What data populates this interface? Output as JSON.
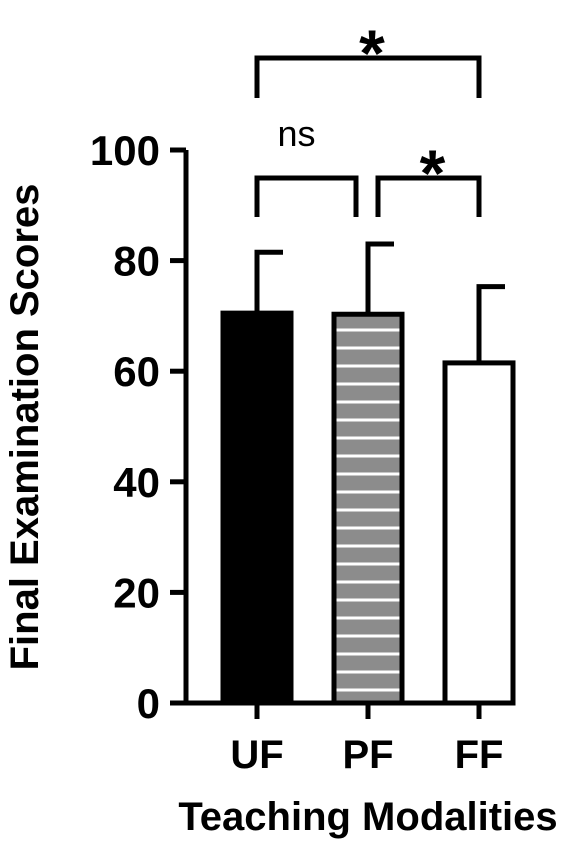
{
  "chart_data": {
    "type": "bar",
    "categories": [
      "UF",
      "PF",
      "FF"
    ],
    "values": [
      70.5,
      70.3,
      61.5
    ],
    "error_upper": [
      81.5,
      83.0,
      75.3
    ],
    "bar_colors": [
      "#000000",
      "#8c8c8c",
      "#ffffff"
    ],
    "bar_patterns": [
      "solid",
      "horizontal-stripes",
      "hollow"
    ],
    "xlabel": "Teaching Modalities",
    "ylabel": "Final Examination Scores",
    "ylim": [
      0,
      100
    ],
    "yticks": [
      0,
      20,
      40,
      60,
      80,
      100
    ],
    "grid": false,
    "legend": "none",
    "significance": [
      {
        "from": "UF",
        "to": "PF",
        "label": "ns"
      },
      {
        "from": "PF",
        "to": "FF",
        "label": "*"
      },
      {
        "from": "UF",
        "to": "FF",
        "label": "*"
      }
    ]
  }
}
